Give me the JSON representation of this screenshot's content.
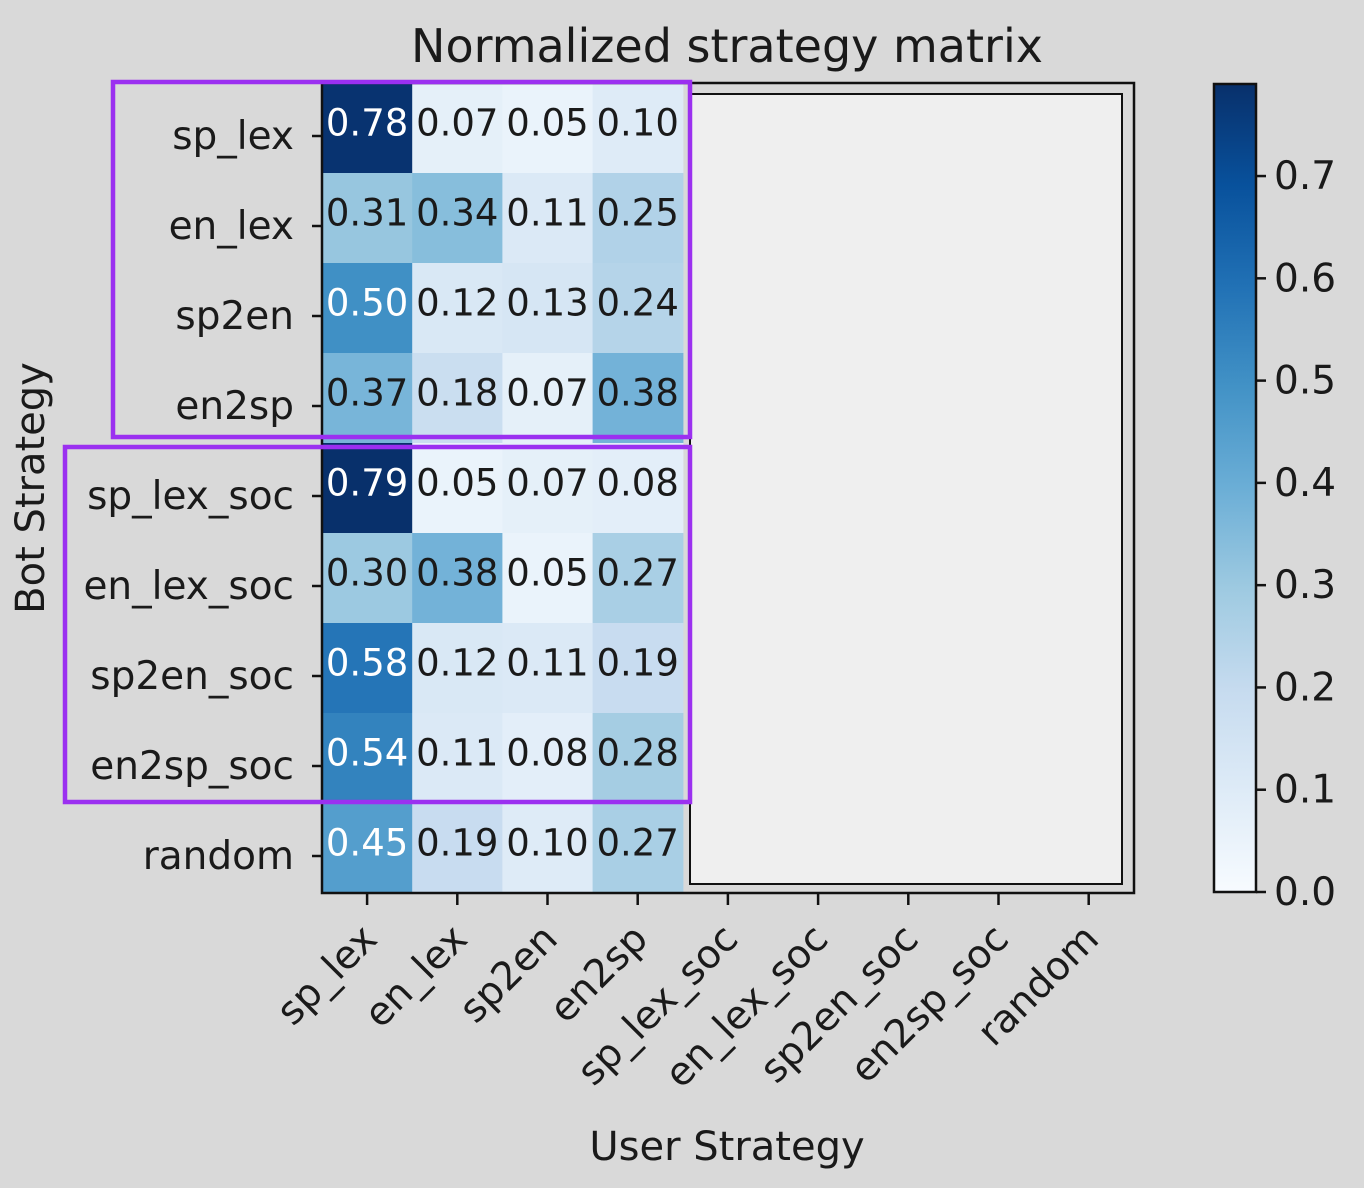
{
  "chart_data": {
    "type": "heatmap",
    "title": "Normalized strategy matrix",
    "xlabel": "User Strategy",
    "ylabel": "Bot Strategy",
    "x_categories": [
      "sp_lex",
      "en_lex",
      "sp2en",
      "en2sp",
      "sp_lex_soc",
      "en_lex_soc",
      "sp2en_soc",
      "en2sp_soc",
      "random"
    ],
    "y_categories": [
      "sp_lex",
      "en_lex",
      "sp2en",
      "en2sp",
      "sp_lex_soc",
      "en_lex_soc",
      "sp2en_soc",
      "en2sp_soc",
      "random"
    ],
    "visible_columns": 4,
    "values": [
      [
        0.78,
        0.07,
        0.05,
        0.1
      ],
      [
        0.31,
        0.34,
        0.11,
        0.25
      ],
      [
        0.5,
        0.12,
        0.13,
        0.24
      ],
      [
        0.37,
        0.18,
        0.07,
        0.38
      ],
      [
        0.79,
        0.05,
        0.07,
        0.08
      ],
      [
        0.3,
        0.38,
        0.05,
        0.27
      ],
      [
        0.58,
        0.12,
        0.11,
        0.19
      ],
      [
        0.54,
        0.11,
        0.08,
        0.28
      ],
      [
        0.45,
        0.19,
        0.1,
        0.27
      ]
    ],
    "value_labels": [
      [
        "0.78",
        "0.07",
        "0.05",
        "0.10"
      ],
      [
        "0.31",
        "0.34",
        "0.11",
        "0.25"
      ],
      [
        "0.50",
        "0.12",
        "0.13",
        "0.24"
      ],
      [
        "0.37",
        "0.18",
        "0.07",
        "0.38"
      ],
      [
        "0.79",
        "0.05",
        "0.07",
        "0.08"
      ],
      [
        "0.30",
        "0.38",
        "0.05",
        "0.27"
      ],
      [
        "0.58",
        "0.12",
        "0.11",
        "0.19"
      ],
      [
        "0.54",
        "0.11",
        "0.08",
        "0.28"
      ],
      [
        "0.45",
        "0.19",
        "0.10",
        "0.27"
      ]
    ],
    "colormap": "Blues",
    "colorbar": {
      "range": [
        0.0,
        0.79
      ],
      "ticks": [
        0.0,
        0.1,
        0.2,
        0.3,
        0.4,
        0.5,
        0.6,
        0.7
      ],
      "tick_labels": [
        "0.0",
        "0.1",
        "0.2",
        "0.3",
        "0.4",
        "0.5",
        "0.6",
        "0.7"
      ]
    },
    "highlight_groups": [
      {
        "rows": [
          "sp_lex",
          "en_lex",
          "sp2en",
          "en2sp"
        ],
        "color": "#9b30f0"
      },
      {
        "rows": [
          "sp_lex_soc",
          "en_lex_soc",
          "sp2en_soc",
          "en2sp_soc"
        ],
        "color": "#9b30f0"
      }
    ],
    "occluded_region_color": "#efefef",
    "grid": false
  }
}
